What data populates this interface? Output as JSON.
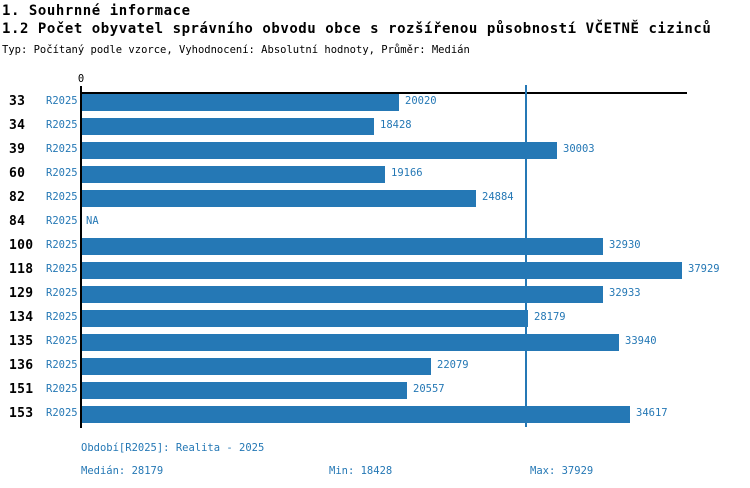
{
  "header": {
    "section_title": "1. Souhrnné informace",
    "indicator_title": "1.2 Počet obyvatel správního obvodu obce s rozšířenou působností VČETNĚ cizinců",
    "meta": "Typ: Počítaný podle vzorce, Vyhodnocení: Absolutní hodnoty, Průměr: Medián"
  },
  "chart_data": {
    "type": "bar",
    "orientation": "horizontal",
    "title": "1.2 Počet obyvatel správního obvodu obce s rozšířenou působností VČETNĚ cizinců",
    "categories": [
      "33",
      "34",
      "39",
      "60",
      "82",
      "84",
      "100",
      "118",
      "129",
      "134",
      "135",
      "136",
      "151",
      "153"
    ],
    "series_label": "R2025",
    "values": [
      20020,
      18428,
      30003,
      19166,
      24884,
      null,
      32930,
      37929,
      32933,
      28179,
      33940,
      22079,
      20557,
      34617
    ],
    "value_labels": [
      "20020",
      "18428",
      "30003",
      "19166",
      "24884",
      "NA",
      "32930",
      "37929",
      "32933",
      "28179",
      "33940",
      "22079",
      "20557",
      "34617"
    ],
    "na_text": "NA",
    "zero_tick_label": "0",
    "xlim": [
      0,
      38300
    ],
    "median_value": 28179,
    "min_value": 18428,
    "max_value": 37929,
    "grid": false,
    "legend_position": "none",
    "bar_color": "#2578b5",
    "median_line_color": "#2578b5",
    "axis_color": "#000000"
  },
  "footer": {
    "period": "Období[R2025]: Realita - 2025",
    "median": "Medián: 28179",
    "min": "Min: 18428",
    "max": "Max: 37929"
  }
}
